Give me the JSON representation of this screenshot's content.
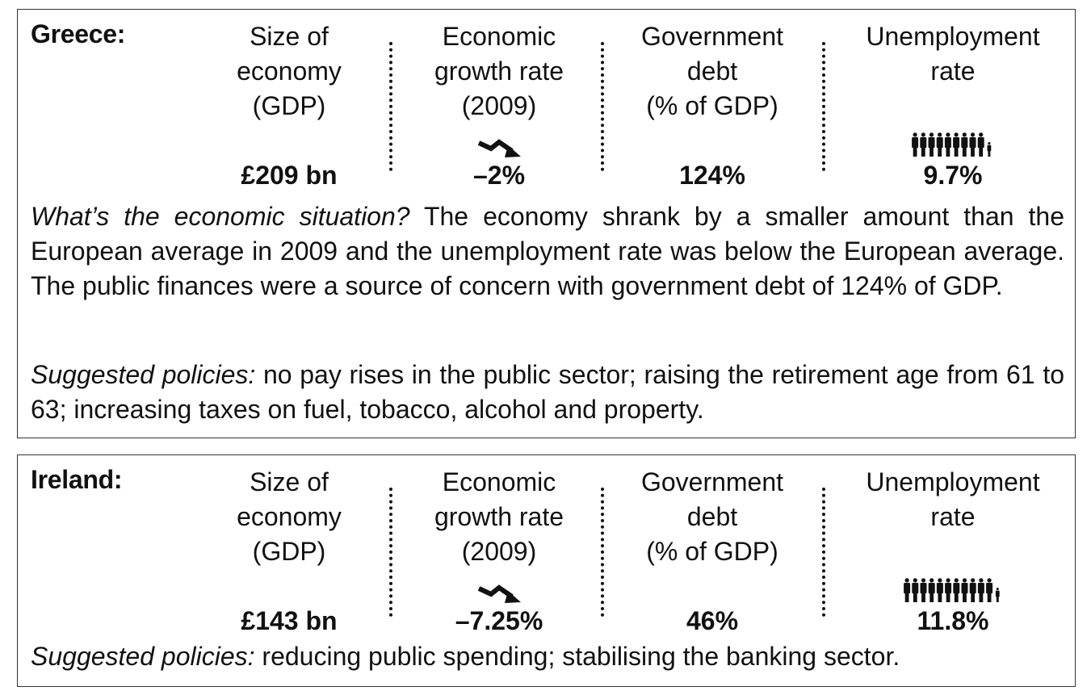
{
  "greece": {
    "name": "Greece:",
    "columns": {
      "gdp": {
        "lines": [
          "Size of",
          "economy",
          "(GDP)"
        ],
        "value": "£209 bn"
      },
      "growth": {
        "lines": [
          "Economic",
          "growth rate",
          "(2009)"
        ],
        "value": "–2%",
        "icon": "falling-arrow-icon"
      },
      "debt": {
        "lines": [
          "Government",
          "debt",
          "(% of GDP)"
        ],
        "value": "124%"
      },
      "unemployment": {
        "lines": [
          "Unemployment",
          "rate"
        ],
        "value": "9.7%",
        "icon": "people-icon",
        "people_count": 9.7
      }
    },
    "situation_label": "What’s the economic situation?",
    "situation_text": " The economy shrank by a smaller amount than the European average in 2009 and the unemployment rate was below the European average. The public finances were a source of concern with government debt of 124% of GDP.",
    "policies_label": "Suggested policies:",
    "policies_text": " no pay rises in the public sector; raising the retirement age from 61 to 63; increasing taxes on fuel, tobacco, alcohol and property."
  },
  "ireland": {
    "name": "Ireland:",
    "columns": {
      "gdp": {
        "lines": [
          "Size of",
          "economy",
          "(GDP)"
        ],
        "value": "£143 bn"
      },
      "growth": {
        "lines": [
          "Economic",
          "growth rate",
          "(2009)"
        ],
        "value": "–7.25%",
        "icon": "falling-arrow-icon"
      },
      "debt": {
        "lines": [
          "Government",
          "debt",
          "(% of GDP)"
        ],
        "value": "46%"
      },
      "unemployment": {
        "lines": [
          "Unemployment",
          "rate"
        ],
        "value": "11.8%",
        "icon": "people-icon",
        "people_count": 11.8
      }
    },
    "policies_label": "Suggested policies:",
    "policies_text": " reducing public spending; stabilising the banking sector."
  }
}
